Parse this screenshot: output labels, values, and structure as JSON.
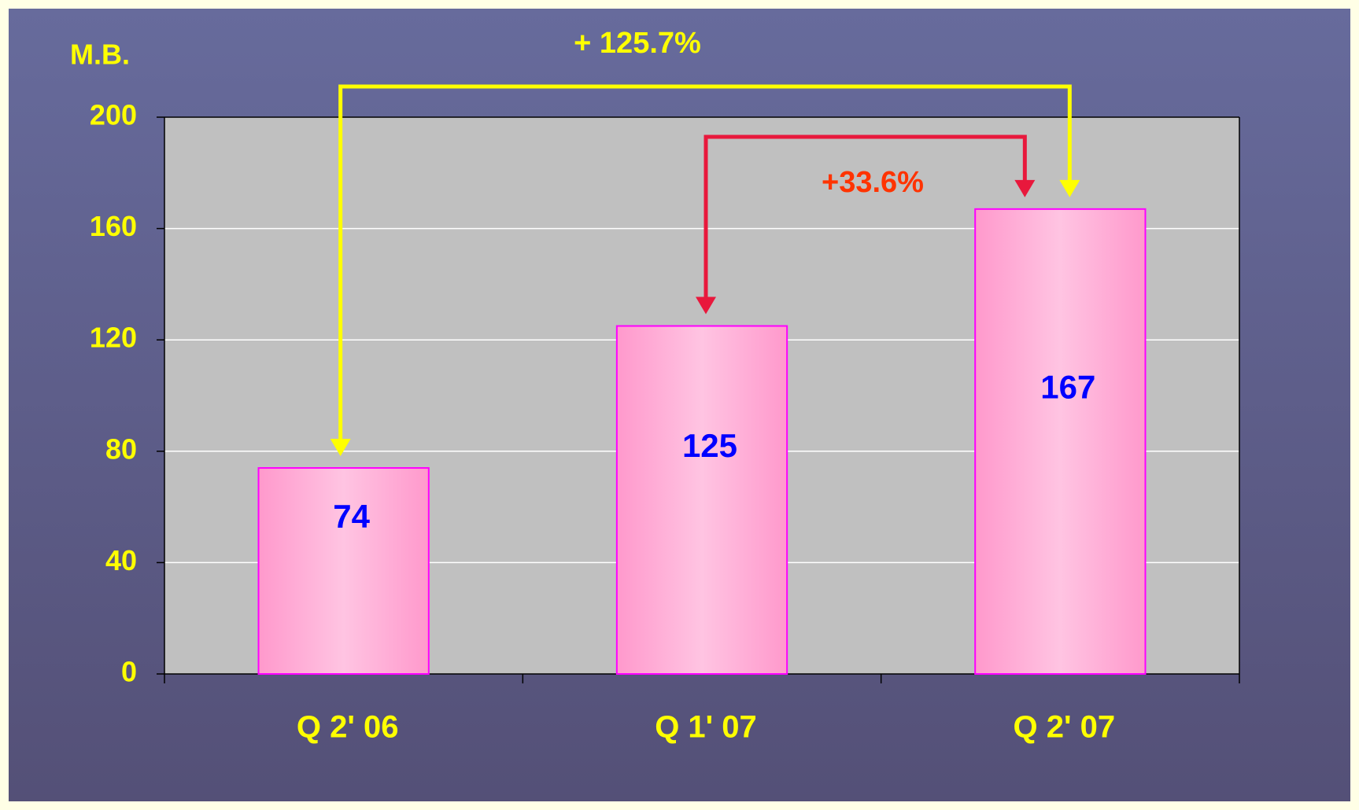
{
  "chart_data": {
    "type": "bar",
    "y_label": "M.B.",
    "categories": [
      "Q 2' 06",
      "Q 1' 07",
      "Q 2' 07"
    ],
    "values": [
      74,
      125,
      167
    ],
    "color": "#ffb0d8",
    "ylim": [
      0,
      200
    ],
    "yticks": [
      0,
      40,
      80,
      120,
      160,
      200
    ],
    "grid": true,
    "annotations": [
      {
        "text": "+ 125.7%",
        "from": 0,
        "to": 2,
        "color": "#ffff00"
      },
      {
        "text": "+33.6%",
        "from": 1,
        "to": 2,
        "color": "#ff3300"
      }
    ]
  }
}
